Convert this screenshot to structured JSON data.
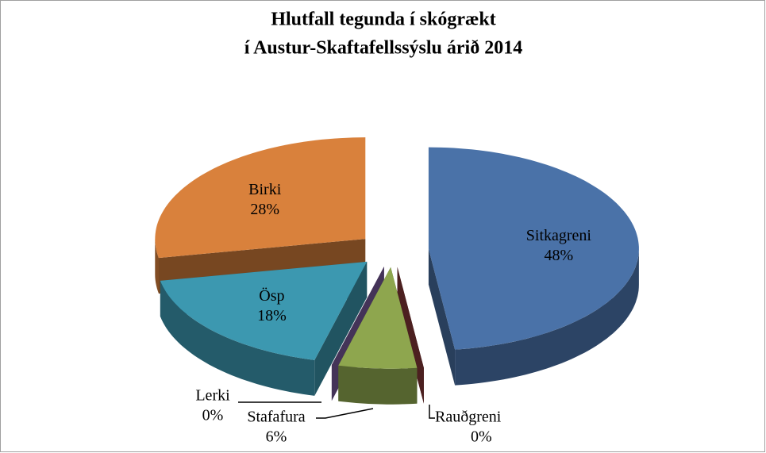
{
  "chart_data": {
    "type": "pie3d",
    "title": [
      "Hlutfall  tegunda í skógrækt",
      "í Austur-Skaftafellssýslu árið 2014"
    ],
    "categories": [
      "Sitkagreni",
      "Rauðgreni",
      "Stafafura",
      "Lerki",
      "Ösp",
      "Birki"
    ],
    "values": [
      48,
      0,
      6,
      0,
      18,
      28
    ],
    "value_labels": [
      "48%",
      "0%",
      "6%",
      "0%",
      "18%",
      "28%"
    ],
    "colors": [
      "#4a72a8",
      "#8b3a3a",
      "#8ea64e",
      "#7b5da0",
      "#3c98b0",
      "#d9813c"
    ],
    "exploded": true
  }
}
